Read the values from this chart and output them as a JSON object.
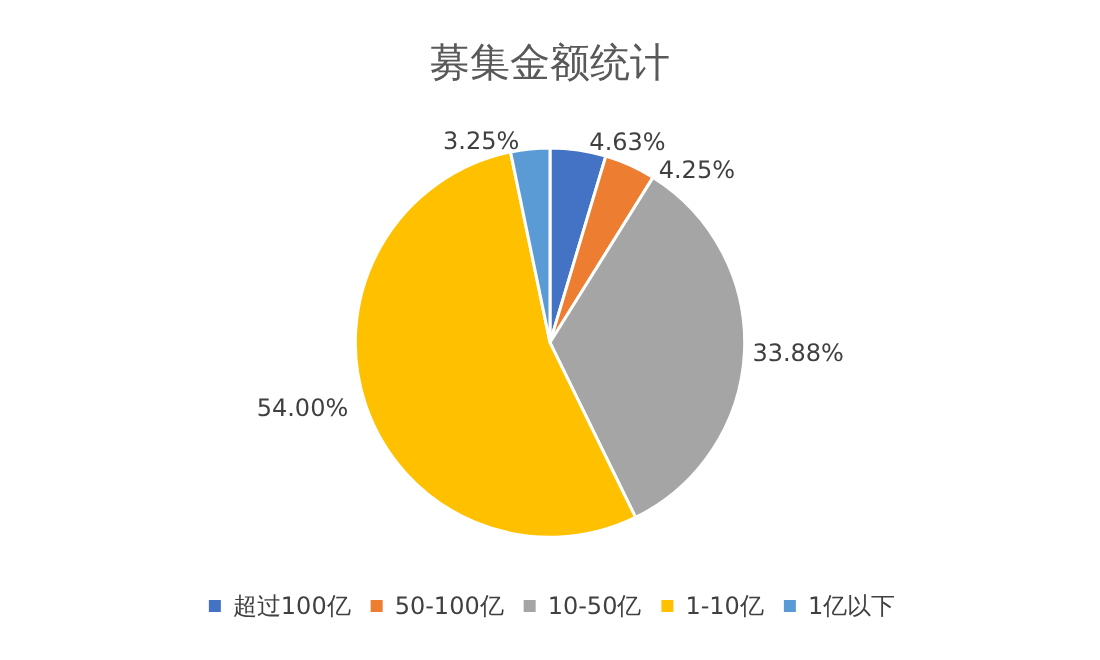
{
  "chart_data": {
    "type": "pie",
    "title": "募集金额统计",
    "categories": [
      "超过100亿",
      "50-100亿",
      "10-50亿",
      "1-10亿",
      "1亿以下"
    ],
    "values": [
      4.63,
      4.25,
      33.88,
      54.0,
      3.25
    ],
    "value_labels": [
      "4.63%",
      "4.25%",
      "33.88%",
      "54.00%",
      "3.25%"
    ],
    "colors": [
      "#4472c4",
      "#ed7d31",
      "#a5a5a5",
      "#ffc000",
      "#5b9bd5"
    ],
    "legend": "bottom"
  }
}
